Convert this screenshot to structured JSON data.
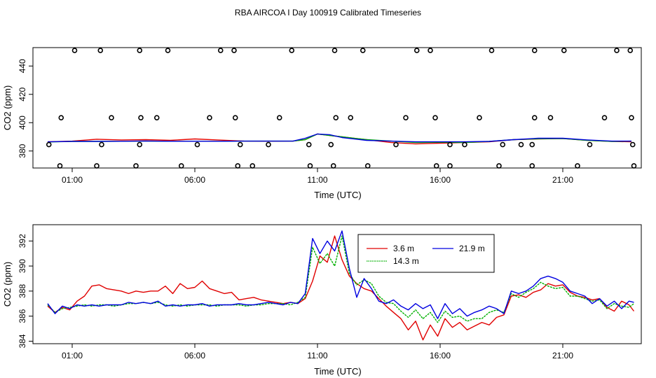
{
  "title": "RBA AIRCOA I  Day 100919  Calibrated Timeseries",
  "colors": {
    "red": "#e00000",
    "green": "#00b000",
    "blue": "#0000e0",
    "axis": "#000000"
  },
  "chart_data": [
    {
      "type": "line",
      "xlabel": "Time (UTC)",
      "ylabel": "CO2 (ppm)",
      "xlim": [
        -0.6,
        24.2
      ],
      "ylim": [
        368,
        453
      ],
      "xticks": [
        1,
        6,
        11,
        16,
        21
      ],
      "xtick_labels": [
        "01:00",
        "06:00",
        "11:00",
        "16:00",
        "21:00"
      ],
      "yticks": [
        380,
        400,
        420,
        440
      ],
      "series": [
        {
          "color": "#e00000",
          "x": [
            0,
            1,
            2,
            3,
            4,
            5,
            6,
            7,
            8,
            9,
            10,
            10.5,
            11,
            11.5,
            12,
            13,
            14,
            15,
            16,
            17,
            18,
            19,
            20,
            21,
            22,
            23,
            23.8
          ],
          "values": [
            386.5,
            387,
            388.3,
            387.8,
            388,
            387.5,
            388.5,
            387.7,
            387,
            386.9,
            387,
            388,
            392,
            391,
            390,
            388,
            386,
            385,
            385.5,
            386,
            386.5,
            388,
            388.5,
            388.8,
            387.5,
            386.8,
            386.5
          ]
        },
        {
          "color": "#00b000",
          "x": [
            0,
            1,
            2,
            3,
            4,
            5,
            6,
            7,
            8,
            9,
            10,
            10.5,
            11,
            11.5,
            12,
            13,
            14,
            15,
            16,
            17,
            18,
            19,
            20,
            21,
            22,
            23,
            23.8
          ],
          "values": [
            386.4,
            386.8,
            386.8,
            386.9,
            387,
            386.9,
            386.9,
            386.9,
            387,
            387,
            387,
            388,
            392,
            391,
            390,
            388,
            387,
            386,
            386.2,
            386,
            386.8,
            388,
            388.6,
            388.8,
            387.5,
            386.8,
            387
          ]
        },
        {
          "color": "#0000e0",
          "x": [
            0,
            1,
            2,
            3,
            4,
            5,
            6,
            7,
            8,
            9,
            10,
            10.5,
            11,
            11.5,
            12,
            13,
            14,
            15,
            16,
            17,
            18,
            19,
            20,
            21,
            22,
            23,
            23.8
          ],
          "values": [
            386.5,
            386.8,
            386.8,
            386.9,
            387.1,
            386.9,
            386.9,
            386.9,
            387,
            387,
            387,
            389,
            392,
            391.5,
            389.5,
            387.5,
            387,
            386.5,
            386.5,
            386.5,
            386.8,
            388,
            389,
            389,
            387.8,
            387,
            387
          ]
        }
      ],
      "outlier_points": {
        "x": [
          1.1,
          2.15,
          3.75,
          4.9,
          7.05,
          7.6,
          9.95,
          11.7,
          12.85,
          15.05,
          15.6,
          18.1,
          19.85,
          21.05,
          23.2,
          23.75,
          0.55,
          2.6,
          3.8,
          4.45,
          6.6,
          7.65,
          9.45,
          11.75,
          12.35,
          14.6,
          15.8,
          17.6,
          19.85,
          20.5,
          22.7,
          23.8,
          0.05,
          2.2,
          3.75,
          6.1,
          7.85,
          9.0,
          10.65,
          11.55,
          14.2,
          16.4,
          17.0,
          18.55,
          19.3,
          19.75,
          22.1,
          23.85,
          0.5,
          2.0,
          3.6,
          5.45,
          7.75,
          8.35,
          10.7,
          11.65,
          13.05,
          15.85,
          16.4,
          18.4,
          19.75,
          21.6,
          23.9
        ],
        "values": [
          451,
          451,
          451,
          451,
          451,
          451,
          451,
          451,
          451,
          451,
          451,
          451,
          451,
          451,
          451,
          451,
          403.5,
          403.5,
          403.5,
          403.5,
          403.5,
          403.5,
          403.5,
          403.5,
          403.5,
          403.5,
          403.5,
          403.5,
          403.5,
          403.5,
          403.5,
          403.5,
          384.5,
          384.5,
          384.5,
          384.5,
          384.5,
          384.5,
          384.5,
          384.5,
          384.5,
          384.5,
          384.5,
          384.5,
          384.5,
          384.5,
          384.5,
          384.5,
          369.5,
          369.5,
          369.5,
          369.5,
          369.5,
          369.5,
          369.5,
          369.5,
          369.5,
          369.5,
          369.5,
          369.5,
          369.5,
          369.5,
          369.5
        ]
      }
    },
    {
      "type": "line",
      "xlabel": "Time (UTC)",
      "ylabel": "CO2 (ppm)",
      "xlim": [
        -0.6,
        24.2
      ],
      "ylim": [
        383.8,
        393.3
      ],
      "xticks": [
        1,
        6,
        11,
        16,
        21
      ],
      "xtick_labels": [
        "01:00",
        "06:00",
        "11:00",
        "16:00",
        "21:00"
      ],
      "yticks": [
        384,
        386,
        388,
        390,
        392
      ],
      "legend": {
        "position": "top-center",
        "entries": [
          "3.6 m",
          "14.3 m",
          "21.9 m"
        ]
      },
      "series": [
        {
          "name": "3.6 m",
          "color": "#e00000",
          "x": [
            0,
            0.3,
            0.6,
            0.9,
            1.2,
            1.5,
            1.8,
            2.1,
            2.4,
            2.7,
            3.0,
            3.3,
            3.6,
            3.9,
            4.2,
            4.5,
            4.8,
            5.1,
            5.4,
            5.7,
            6.0,
            6.3,
            6.6,
            6.9,
            7.2,
            7.5,
            7.8,
            8.1,
            8.4,
            8.7,
            9.0,
            9.3,
            9.6,
            9.9,
            10.2,
            10.5,
            10.8,
            11.1,
            11.4,
            11.7,
            12.0,
            12.3,
            12.6,
            12.9,
            13.2,
            13.5,
            13.8,
            14.1,
            14.4,
            14.7,
            15.0,
            15.3,
            15.6,
            15.9,
            16.2,
            16.5,
            16.8,
            17.1,
            17.4,
            17.7,
            18.0,
            18.3,
            18.6,
            18.9,
            19.2,
            19.5,
            19.8,
            20.1,
            20.4,
            20.7,
            21.0,
            21.3,
            21.6,
            21.9,
            22.2,
            22.5,
            22.8,
            23.1,
            23.4,
            23.7,
            23.9
          ],
          "values": [
            386.8,
            386.3,
            386.7,
            386.5,
            387.2,
            387.6,
            388.4,
            388.5,
            388.2,
            388.1,
            388.0,
            387.8,
            388.0,
            387.9,
            388.0,
            388.0,
            388.4,
            387.8,
            388.6,
            388.2,
            388.3,
            388.8,
            388.2,
            388.0,
            387.8,
            387.9,
            387.3,
            387.4,
            387.5,
            387.3,
            387.2,
            387.1,
            387.0,
            387.1,
            387.0,
            387.4,
            388.8,
            390.8,
            390.3,
            392.4,
            390.5,
            389.2,
            388.6,
            388.2,
            388.0,
            387.4,
            386.8,
            386.3,
            385.8,
            384.9,
            385.6,
            384.1,
            385.3,
            384.4,
            385.8,
            385.1,
            385.5,
            384.9,
            385.2,
            385.5,
            385.3,
            385.9,
            386.1,
            387.6,
            387.7,
            387.5,
            387.9,
            388.1,
            388.6,
            388.4,
            388.5,
            387.9,
            387.6,
            387.5,
            387.3,
            387.4,
            386.7,
            386.4,
            387.2,
            386.9,
            386.4
          ]
        },
        {
          "name": "14.3 m",
          "color": "#00b000",
          "x": [
            0,
            0.3,
            0.6,
            0.9,
            1.2,
            1.5,
            1.8,
            2.1,
            2.4,
            2.7,
            3.0,
            3.3,
            3.6,
            3.9,
            4.2,
            4.5,
            4.8,
            5.1,
            5.4,
            5.7,
            6.0,
            6.3,
            6.6,
            6.9,
            7.2,
            7.5,
            7.8,
            8.1,
            8.4,
            8.7,
            9.0,
            9.3,
            9.6,
            9.9,
            10.2,
            10.5,
            10.8,
            11.1,
            11.4,
            11.7,
            12.0,
            12.3,
            12.6,
            12.9,
            13.2,
            13.5,
            13.8,
            14.1,
            14.4,
            14.7,
            15.0,
            15.3,
            15.6,
            15.9,
            16.2,
            16.5,
            16.8,
            17.1,
            17.4,
            17.7,
            18.0,
            18.3,
            18.6,
            18.9,
            19.2,
            19.5,
            19.8,
            20.1,
            20.4,
            20.7,
            21.0,
            21.3,
            21.6,
            21.9,
            22.2,
            22.5,
            22.8,
            23.1,
            23.4,
            23.7,
            23.9
          ],
          "values": [
            386.9,
            386.3,
            386.6,
            386.7,
            386.8,
            386.9,
            386.8,
            386.9,
            386.9,
            386.8,
            386.9,
            387.0,
            387.0,
            387.1,
            387.0,
            387.1,
            386.9,
            386.8,
            386.9,
            386.8,
            386.9,
            386.9,
            386.9,
            386.8,
            386.9,
            386.9,
            386.9,
            386.8,
            386.9,
            386.9,
            387.0,
            387.0,
            387.0,
            386.9,
            387.1,
            387.5,
            391.5,
            390.2,
            391.0,
            390.0,
            392.4,
            389.4,
            388.5,
            388.9,
            388.6,
            387.6,
            387.1,
            387.0,
            386.4,
            385.9,
            386.5,
            385.8,
            386.3,
            385.5,
            386.4,
            385.9,
            386.0,
            385.6,
            385.8,
            385.8,
            386.3,
            386.5,
            386.3,
            387.8,
            387.5,
            387.9,
            388.2,
            388.7,
            388.4,
            388.2,
            388.3,
            387.6,
            387.6,
            387.4,
            387.2,
            387.3,
            386.6,
            387.0,
            386.8,
            386.7,
            387.0
          ]
        },
        {
          "name": "21.9 m",
          "color": "#0000e0",
          "x": [
            0,
            0.3,
            0.6,
            0.9,
            1.2,
            1.5,
            1.8,
            2.1,
            2.4,
            2.7,
            3.0,
            3.3,
            3.6,
            3.9,
            4.2,
            4.5,
            4.8,
            5.1,
            5.4,
            5.7,
            6.0,
            6.3,
            6.6,
            6.9,
            7.2,
            7.5,
            7.8,
            8.1,
            8.4,
            8.7,
            9.0,
            9.3,
            9.6,
            9.9,
            10.2,
            10.5,
            10.8,
            11.1,
            11.4,
            11.7,
            12.0,
            12.3,
            12.6,
            12.9,
            13.2,
            13.5,
            13.8,
            14.1,
            14.4,
            14.7,
            15.0,
            15.3,
            15.6,
            15.9,
            16.2,
            16.5,
            16.8,
            17.1,
            17.4,
            17.7,
            18.0,
            18.3,
            18.6,
            18.9,
            19.2,
            19.5,
            19.8,
            20.1,
            20.4,
            20.7,
            21.0,
            21.3,
            21.6,
            21.9,
            22.2,
            22.5,
            22.8,
            23.1,
            23.4,
            23.7,
            23.9
          ],
          "values": [
            387.0,
            386.2,
            386.8,
            386.6,
            386.9,
            386.8,
            386.9,
            386.8,
            386.9,
            386.9,
            386.9,
            387.1,
            387.0,
            387.1,
            387.0,
            387.2,
            386.8,
            386.9,
            386.8,
            386.9,
            386.9,
            387.0,
            386.8,
            386.9,
            386.9,
            386.9,
            387.0,
            386.9,
            386.9,
            387.0,
            387.1,
            387.0,
            386.9,
            387.1,
            387.0,
            387.8,
            392.2,
            391.0,
            392.0,
            391.2,
            392.8,
            389.8,
            387.5,
            389.0,
            388.2,
            387.2,
            387.0,
            387.3,
            386.8,
            386.5,
            387.0,
            386.6,
            386.9,
            385.8,
            387.0,
            386.2,
            386.6,
            386.0,
            386.3,
            386.5,
            386.8,
            386.6,
            386.2,
            388.0,
            387.8,
            388.0,
            388.4,
            389.0,
            389.2,
            389.0,
            388.7,
            388.0,
            387.8,
            387.6,
            387.0,
            387.4,
            386.8,
            387.2,
            386.6,
            387.2,
            387.1
          ]
        }
      ]
    }
  ]
}
